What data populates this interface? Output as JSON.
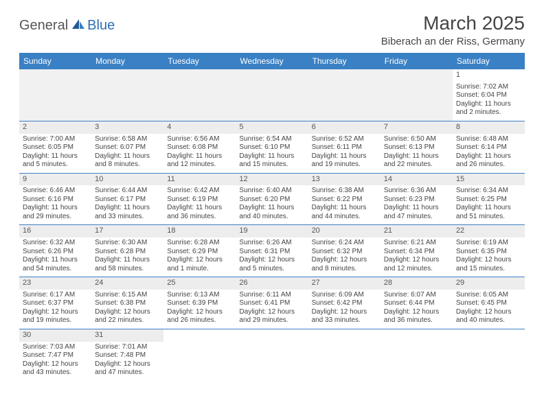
{
  "logo": {
    "part1": "General",
    "part2": "Blue"
  },
  "title": "March 2025",
  "location": "Biberach an der Riss, Germany",
  "colors": {
    "header_bg": "#3a80c4",
    "header_text": "#ffffff",
    "border": "#3a80c4",
    "daynum_bg": "#ededed",
    "logo_accent": "#2e6fb5"
  },
  "weekdays": [
    "Sunday",
    "Monday",
    "Tuesday",
    "Wednesday",
    "Thursday",
    "Friday",
    "Saturday"
  ],
  "weeks": [
    [
      null,
      null,
      null,
      null,
      null,
      null,
      {
        "n": "1",
        "sr": "Sunrise: 7:02 AM",
        "ss": "Sunset: 6:04 PM",
        "d1": "Daylight: 11 hours",
        "d2": "and 2 minutes."
      }
    ],
    [
      {
        "n": "2",
        "sr": "Sunrise: 7:00 AM",
        "ss": "Sunset: 6:05 PM",
        "d1": "Daylight: 11 hours",
        "d2": "and 5 minutes."
      },
      {
        "n": "3",
        "sr": "Sunrise: 6:58 AM",
        "ss": "Sunset: 6:07 PM",
        "d1": "Daylight: 11 hours",
        "d2": "and 8 minutes."
      },
      {
        "n": "4",
        "sr": "Sunrise: 6:56 AM",
        "ss": "Sunset: 6:08 PM",
        "d1": "Daylight: 11 hours",
        "d2": "and 12 minutes."
      },
      {
        "n": "5",
        "sr": "Sunrise: 6:54 AM",
        "ss": "Sunset: 6:10 PM",
        "d1": "Daylight: 11 hours",
        "d2": "and 15 minutes."
      },
      {
        "n": "6",
        "sr": "Sunrise: 6:52 AM",
        "ss": "Sunset: 6:11 PM",
        "d1": "Daylight: 11 hours",
        "d2": "and 19 minutes."
      },
      {
        "n": "7",
        "sr": "Sunrise: 6:50 AM",
        "ss": "Sunset: 6:13 PM",
        "d1": "Daylight: 11 hours",
        "d2": "and 22 minutes."
      },
      {
        "n": "8",
        "sr": "Sunrise: 6:48 AM",
        "ss": "Sunset: 6:14 PM",
        "d1": "Daylight: 11 hours",
        "d2": "and 26 minutes."
      }
    ],
    [
      {
        "n": "9",
        "sr": "Sunrise: 6:46 AM",
        "ss": "Sunset: 6:16 PM",
        "d1": "Daylight: 11 hours",
        "d2": "and 29 minutes."
      },
      {
        "n": "10",
        "sr": "Sunrise: 6:44 AM",
        "ss": "Sunset: 6:17 PM",
        "d1": "Daylight: 11 hours",
        "d2": "and 33 minutes."
      },
      {
        "n": "11",
        "sr": "Sunrise: 6:42 AM",
        "ss": "Sunset: 6:19 PM",
        "d1": "Daylight: 11 hours",
        "d2": "and 36 minutes."
      },
      {
        "n": "12",
        "sr": "Sunrise: 6:40 AM",
        "ss": "Sunset: 6:20 PM",
        "d1": "Daylight: 11 hours",
        "d2": "and 40 minutes."
      },
      {
        "n": "13",
        "sr": "Sunrise: 6:38 AM",
        "ss": "Sunset: 6:22 PM",
        "d1": "Daylight: 11 hours",
        "d2": "and 44 minutes."
      },
      {
        "n": "14",
        "sr": "Sunrise: 6:36 AM",
        "ss": "Sunset: 6:23 PM",
        "d1": "Daylight: 11 hours",
        "d2": "and 47 minutes."
      },
      {
        "n": "15",
        "sr": "Sunrise: 6:34 AM",
        "ss": "Sunset: 6:25 PM",
        "d1": "Daylight: 11 hours",
        "d2": "and 51 minutes."
      }
    ],
    [
      {
        "n": "16",
        "sr": "Sunrise: 6:32 AM",
        "ss": "Sunset: 6:26 PM",
        "d1": "Daylight: 11 hours",
        "d2": "and 54 minutes."
      },
      {
        "n": "17",
        "sr": "Sunrise: 6:30 AM",
        "ss": "Sunset: 6:28 PM",
        "d1": "Daylight: 11 hours",
        "d2": "and 58 minutes."
      },
      {
        "n": "18",
        "sr": "Sunrise: 6:28 AM",
        "ss": "Sunset: 6:29 PM",
        "d1": "Daylight: 12 hours",
        "d2": "and 1 minute."
      },
      {
        "n": "19",
        "sr": "Sunrise: 6:26 AM",
        "ss": "Sunset: 6:31 PM",
        "d1": "Daylight: 12 hours",
        "d2": "and 5 minutes."
      },
      {
        "n": "20",
        "sr": "Sunrise: 6:24 AM",
        "ss": "Sunset: 6:32 PM",
        "d1": "Daylight: 12 hours",
        "d2": "and 8 minutes."
      },
      {
        "n": "21",
        "sr": "Sunrise: 6:21 AM",
        "ss": "Sunset: 6:34 PM",
        "d1": "Daylight: 12 hours",
        "d2": "and 12 minutes."
      },
      {
        "n": "22",
        "sr": "Sunrise: 6:19 AM",
        "ss": "Sunset: 6:35 PM",
        "d1": "Daylight: 12 hours",
        "d2": "and 15 minutes."
      }
    ],
    [
      {
        "n": "23",
        "sr": "Sunrise: 6:17 AM",
        "ss": "Sunset: 6:37 PM",
        "d1": "Daylight: 12 hours",
        "d2": "and 19 minutes."
      },
      {
        "n": "24",
        "sr": "Sunrise: 6:15 AM",
        "ss": "Sunset: 6:38 PM",
        "d1": "Daylight: 12 hours",
        "d2": "and 22 minutes."
      },
      {
        "n": "25",
        "sr": "Sunrise: 6:13 AM",
        "ss": "Sunset: 6:39 PM",
        "d1": "Daylight: 12 hours",
        "d2": "and 26 minutes."
      },
      {
        "n": "26",
        "sr": "Sunrise: 6:11 AM",
        "ss": "Sunset: 6:41 PM",
        "d1": "Daylight: 12 hours",
        "d2": "and 29 minutes."
      },
      {
        "n": "27",
        "sr": "Sunrise: 6:09 AM",
        "ss": "Sunset: 6:42 PM",
        "d1": "Daylight: 12 hours",
        "d2": "and 33 minutes."
      },
      {
        "n": "28",
        "sr": "Sunrise: 6:07 AM",
        "ss": "Sunset: 6:44 PM",
        "d1": "Daylight: 12 hours",
        "d2": "and 36 minutes."
      },
      {
        "n": "29",
        "sr": "Sunrise: 6:05 AM",
        "ss": "Sunset: 6:45 PM",
        "d1": "Daylight: 12 hours",
        "d2": "and 40 minutes."
      }
    ],
    [
      {
        "n": "30",
        "sr": "Sunrise: 7:03 AM",
        "ss": "Sunset: 7:47 PM",
        "d1": "Daylight: 12 hours",
        "d2": "and 43 minutes."
      },
      {
        "n": "31",
        "sr": "Sunrise: 7:01 AM",
        "ss": "Sunset: 7:48 PM",
        "d1": "Daylight: 12 hours",
        "d2": "and 47 minutes."
      },
      null,
      null,
      null,
      null,
      null
    ]
  ]
}
